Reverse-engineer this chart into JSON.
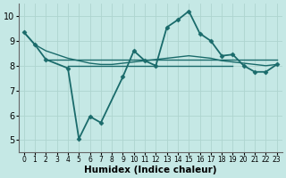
{
  "series": [
    {
      "x": [
        0,
        1,
        2,
        4,
        5,
        6,
        7,
        9,
        10,
        11,
        12,
        13,
        14,
        15,
        16,
        17,
        18,
        19,
        20,
        21,
        22,
        23
      ],
      "y": [
        9.35,
        8.85,
        8.25,
        7.9,
        5.05,
        5.95,
        5.7,
        7.55,
        8.6,
        8.2,
        8.0,
        9.55,
        9.85,
        10.2,
        9.3,
        9.0,
        8.4,
        8.45,
        8.0,
        7.75,
        7.75,
        8.05
      ],
      "color": "#1a6b6b",
      "linewidth": 1.3,
      "marker": "D",
      "markersize": 2.5
    },
    {
      "x": [
        0,
        1,
        2,
        3,
        4,
        5,
        6,
        7,
        8,
        9,
        10,
        11,
        12,
        13,
        14,
        15,
        16,
        17,
        18,
        19,
        20,
        21,
        22,
        23
      ],
      "y": [
        9.35,
        8.85,
        8.6,
        8.45,
        8.3,
        8.2,
        8.1,
        8.05,
        8.05,
        8.1,
        8.15,
        8.2,
        8.25,
        8.3,
        8.35,
        8.4,
        8.35,
        8.3,
        8.2,
        8.15,
        8.1,
        8.05,
        8.0,
        8.05
      ],
      "color": "#1a6b6b",
      "linewidth": 1.0,
      "marker": null,
      "markersize": 0
    },
    {
      "x": [
        2,
        23
      ],
      "y": [
        8.25,
        8.25
      ],
      "color": "#1a6b6b",
      "linewidth": 1.0,
      "marker": null,
      "markersize": 0
    },
    {
      "x": [
        4,
        19
      ],
      "y": [
        8.0,
        8.0
      ],
      "color": "#1a6b6b",
      "linewidth": 1.0,
      "marker": null,
      "markersize": 0
    }
  ],
  "xlim": [
    -0.5,
    23.5
  ],
  "ylim": [
    4.5,
    10.5
  ],
  "yticks": [
    5,
    6,
    7,
    8,
    9,
    10
  ],
  "xticks": [
    0,
    1,
    2,
    3,
    4,
    5,
    6,
    7,
    8,
    9,
    10,
    11,
    12,
    13,
    14,
    15,
    16,
    17,
    18,
    19,
    20,
    21,
    22,
    23
  ],
  "xlabel": "Humidex (Indice chaleur)",
  "bg_color": "#c5e8e5",
  "grid_color": "#aed4cf",
  "line_color": "#1a6b6b",
  "tick_fontsize": 5.5,
  "xlabel_fontsize": 7.5,
  "ytick_fontsize": 7
}
